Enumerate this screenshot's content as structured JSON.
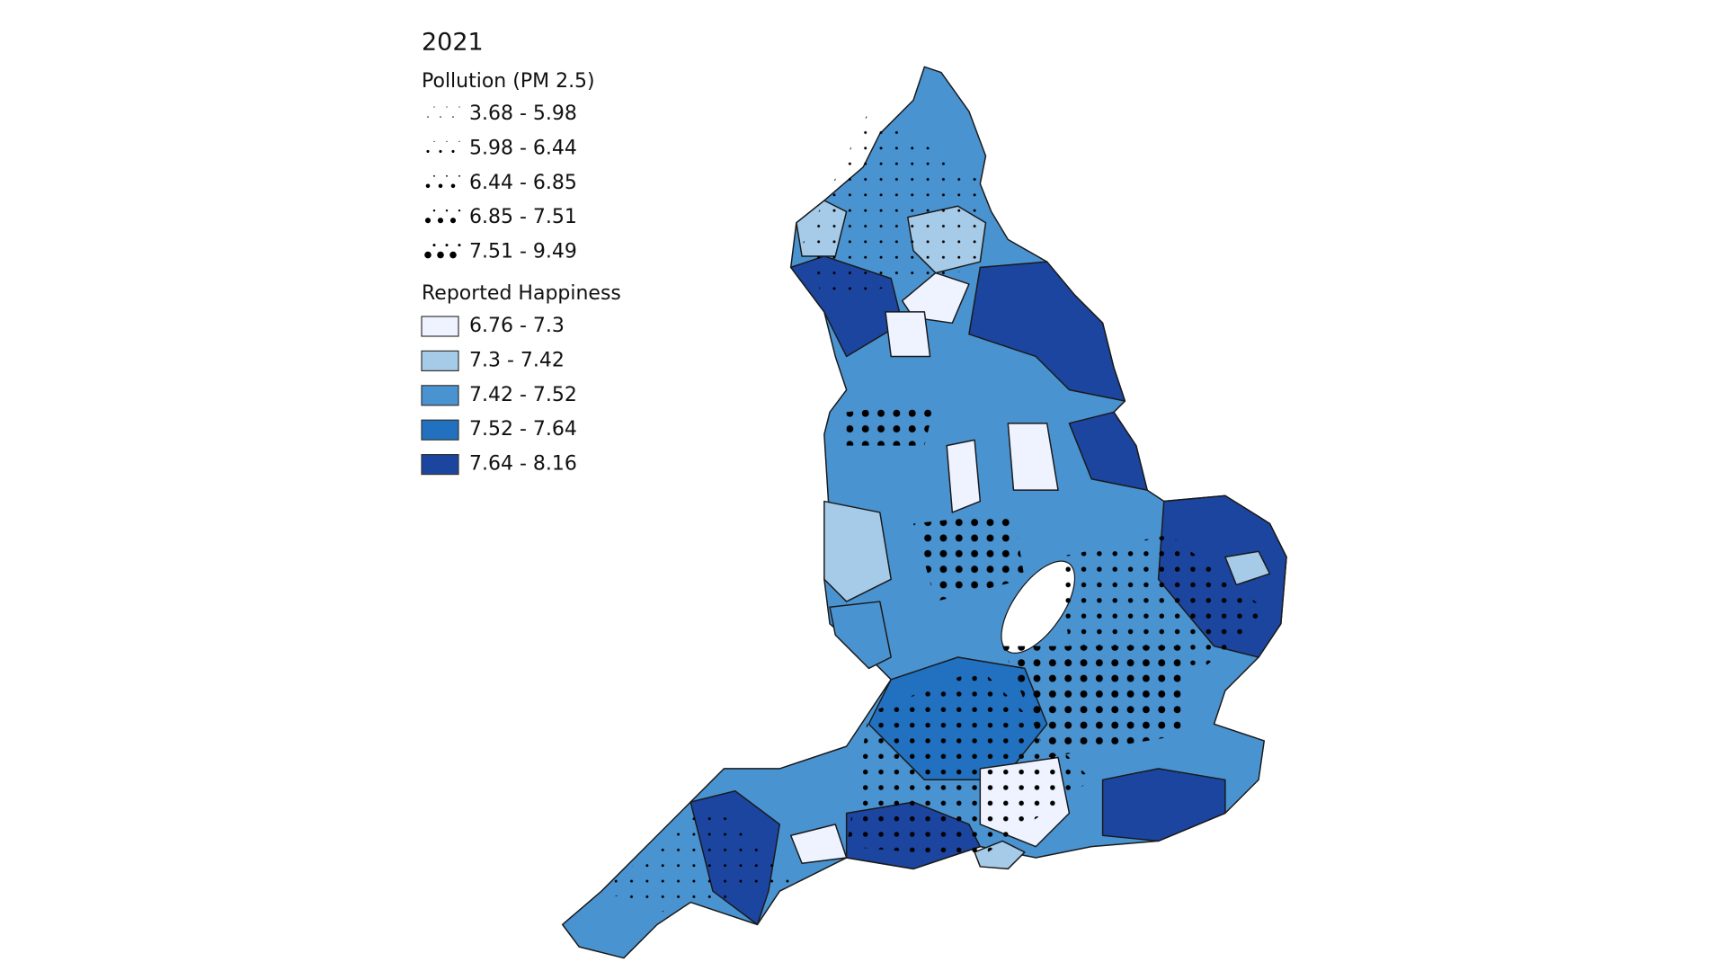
{
  "title": "2021",
  "legends": [
    {
      "title": "Pollution (PM 2.5)",
      "items": [
        "3.68 - 5.98",
        "5.98 - 6.44",
        "6.44 - 6.85",
        "6.85 - 7.51",
        "7.51 - 9.49"
      ]
    },
    {
      "title": "Reported Happiness",
      "items": [
        "6.76 - 7.3",
        "7.3 - 7.42",
        "7.42 - 7.52",
        "7.52 - 7.64",
        "7.64 - 8.16"
      ],
      "colors": [
        "#eff3ff",
        "#a6cbe8",
        "#4a93d1",
        "#2171c0",
        "#1c45a0"
      ]
    }
  ]
}
